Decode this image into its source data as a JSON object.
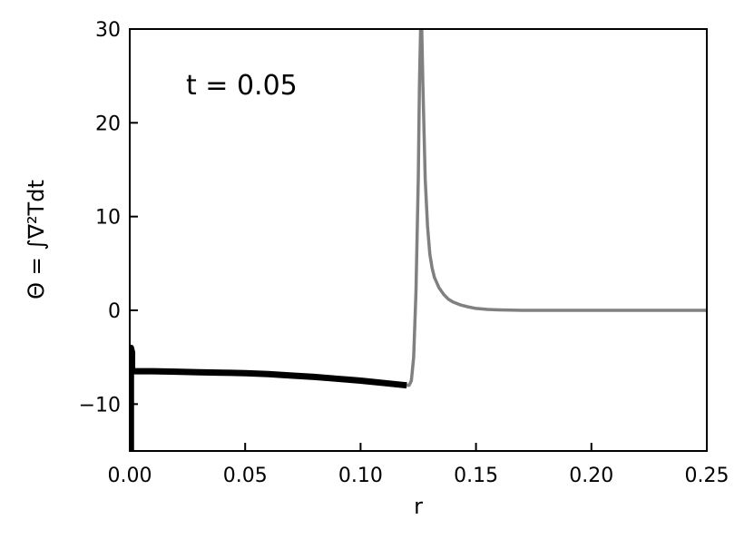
{
  "chart_data": {
    "type": "line",
    "title": "",
    "xlabel": "r",
    "ylabel": "Θ = ∫∇²Tdt",
    "xlim": [
      0.0,
      0.25
    ],
    "ylim": [
      -15,
      30
    ],
    "xticks": [
      0.0,
      0.05,
      0.1,
      0.15,
      0.2,
      0.25
    ],
    "xtick_labels": [
      "0.00",
      "0.05",
      "0.10",
      "0.15",
      "0.20",
      "0.25"
    ],
    "yticks": [
      -10,
      0,
      10,
      20,
      30
    ],
    "ytick_labels": [
      "−10",
      "0",
      "10",
      "20",
      "30"
    ],
    "grid": false,
    "annotation": "t = 0.05",
    "series": [
      {
        "color": "#000000",
        "style": "thick",
        "x": [
          0.0005,
          0.0005,
          0.001,
          0.001,
          0.01,
          0.02,
          0.03,
          0.04,
          0.05,
          0.06,
          0.07,
          0.08,
          0.09,
          0.1,
          0.11,
          0.12
        ],
        "y": [
          -15,
          -4,
          -4.5,
          -6.5,
          -6.5,
          -6.55,
          -6.6,
          -6.65,
          -6.7,
          -6.8,
          -6.95,
          -7.1,
          -7.3,
          -7.5,
          -7.75,
          -8.0
        ]
      },
      {
        "color": "#808080",
        "style": "thin",
        "x": [
          0.12,
          0.121,
          0.122,
          0.123,
          0.124,
          0.125,
          0.1255,
          0.126,
          0.1265,
          0.127,
          0.128,
          0.129,
          0.13,
          0.131,
          0.132,
          0.134,
          0.136,
          0.138,
          0.14,
          0.143,
          0.146,
          0.15,
          0.155,
          0.16,
          0.17,
          0.18,
          0.2,
          0.22,
          0.25
        ],
        "y": [
          -8.0,
          -8.0,
          -7.5,
          -5.0,
          2.0,
          14.0,
          24.0,
          30.0,
          30.0,
          24.0,
          14.0,
          9.0,
          6.0,
          4.5,
          3.5,
          2.4,
          1.7,
          1.2,
          0.9,
          0.6,
          0.4,
          0.2,
          0.1,
          0.05,
          0.0,
          0.0,
          0.0,
          0.0,
          0.0
        ]
      }
    ]
  }
}
